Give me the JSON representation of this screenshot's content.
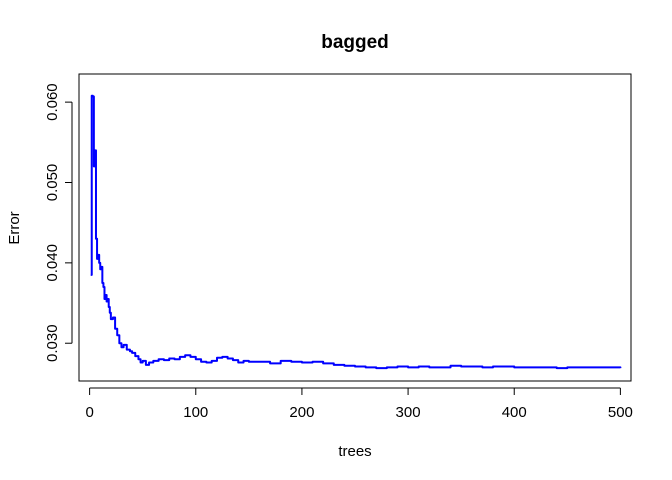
{
  "chart_data": {
    "type": "line",
    "title": "bagged",
    "xlabel": "trees",
    "ylabel": "Error",
    "xlim": [
      -10,
      510
    ],
    "ylim": [
      0.0253,
      0.0635
    ],
    "xticks": [
      0,
      100,
      200,
      300,
      400,
      500
    ],
    "yticks": [
      0.03,
      0.04,
      0.05,
      0.06
    ],
    "ytick_labels": [
      "0.030",
      "0.040",
      "0.050",
      "0.060"
    ],
    "grid": false,
    "legend": "none",
    "series": [
      {
        "color": "#0000ff",
        "x": [
          1,
          2,
          3,
          4,
          5,
          6,
          7,
          8,
          9,
          10,
          11,
          12,
          13,
          14,
          15,
          16,
          17,
          18,
          19,
          20,
          22,
          24,
          26,
          28,
          30,
          32,
          35,
          38,
          40,
          43,
          46,
          48,
          50,
          53,
          56,
          60,
          65,
          70,
          75,
          80,
          85,
          90,
          95,
          100,
          105,
          110,
          115,
          120,
          125,
          130,
          135,
          140,
          145,
          150,
          160,
          170,
          180,
          190,
          200,
          210,
          220,
          230,
          240,
          250,
          260,
          270,
          280,
          290,
          300,
          310,
          320,
          330,
          340,
          350,
          360,
          370,
          380,
          390,
          400,
          410,
          420,
          430,
          440,
          450,
          460,
          470,
          480,
          490,
          500
        ],
        "y": [
          0.0385,
          0.0608,
          0.0607,
          0.052,
          0.054,
          0.043,
          0.0405,
          0.041,
          0.04,
          0.0392,
          0.0395,
          0.0375,
          0.037,
          0.0355,
          0.036,
          0.0352,
          0.0355,
          0.0345,
          0.0338,
          0.033,
          0.0332,
          0.0318,
          0.031,
          0.03,
          0.0295,
          0.0298,
          0.0292,
          0.029,
          0.0288,
          0.0284,
          0.028,
          0.0276,
          0.0278,
          0.0273,
          0.0276,
          0.0278,
          0.028,
          0.0279,
          0.0281,
          0.028,
          0.0283,
          0.0285,
          0.0283,
          0.028,
          0.0277,
          0.0276,
          0.0278,
          0.0282,
          0.0283,
          0.0281,
          0.0279,
          0.0276,
          0.0278,
          0.0277,
          0.0277,
          0.0275,
          0.0278,
          0.0277,
          0.0276,
          0.0277,
          0.0275,
          0.0273,
          0.0272,
          0.0271,
          0.027,
          0.0269,
          0.027,
          0.0271,
          0.027,
          0.0271,
          0.027,
          0.027,
          0.0272,
          0.0271,
          0.0271,
          0.027,
          0.0271,
          0.0271,
          0.027,
          0.027,
          0.027,
          0.027,
          0.0269,
          0.027,
          0.027,
          0.027,
          0.027,
          0.027,
          0.0269
        ]
      }
    ]
  }
}
